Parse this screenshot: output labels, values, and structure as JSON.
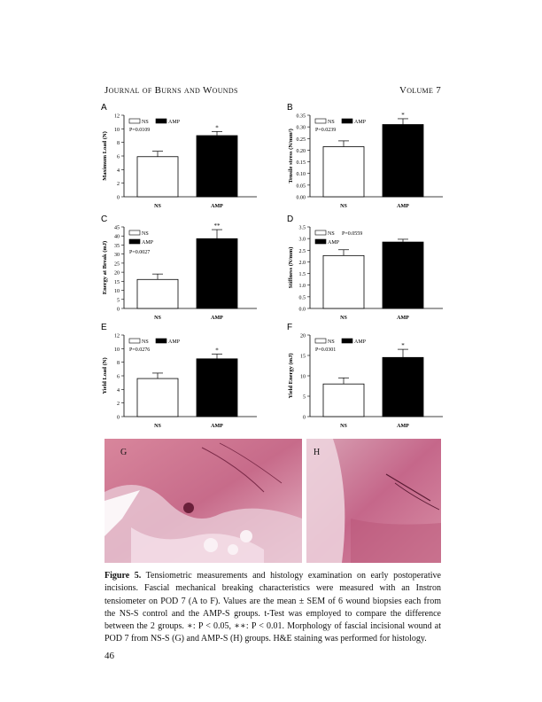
{
  "header": {
    "journal": "Journal of Burns and Wounds",
    "volume": "Volume 7"
  },
  "legend": {
    "ns": "NS",
    "amp": "AMP"
  },
  "panels": [
    {
      "letter": "A",
      "ylabel": "Maximum Load (N)",
      "pvalue": "P=0.0109",
      "chart_data": {
        "type": "bar",
        "categories": [
          "NS",
          "AMP"
        ],
        "values": [
          5.9,
          9.0
        ],
        "errors": [
          0.8,
          0.6
        ],
        "ylim": [
          0,
          12
        ],
        "ticks": [
          "0",
          "2",
          "4",
          "6",
          "8",
          "10",
          "12"
        ],
        "significance": "*",
        "legend_layout": "inline"
      }
    },
    {
      "letter": "B",
      "ylabel": "Tensile stress (N/mm²)",
      "pvalue": "P=0.0239",
      "chart_data": {
        "type": "bar",
        "categories": [
          "NS",
          "AMP"
        ],
        "values": [
          0.215,
          0.31
        ],
        "errors": [
          0.025,
          0.025
        ],
        "ylim": [
          0,
          0.35
        ],
        "ticks": [
          "0.00",
          "0.05",
          "0.10",
          "0.15",
          "0.20",
          "0.25",
          "0.30",
          "0.35"
        ],
        "significance": "*",
        "legend_layout": "inline"
      }
    },
    {
      "letter": "C",
      "ylabel": "Energy at Break (mJ)",
      "pvalue": "P=0.0027",
      "chart_data": {
        "type": "bar",
        "categories": [
          "NS",
          "AMP"
        ],
        "values": [
          16.0,
          38.5
        ],
        "errors": [
          3.0,
          5.0
        ],
        "ylim": [
          0,
          45
        ],
        "ticks": [
          "0",
          "5",
          "10",
          "15",
          "20",
          "25",
          "30",
          "35",
          "40",
          "45"
        ],
        "significance": "**",
        "legend_layout": "stacked"
      }
    },
    {
      "letter": "D",
      "ylabel": "Stiffness (N/mm)",
      "pvalue": "P=0.0559",
      "chart_data": {
        "type": "bar",
        "categories": [
          "NS",
          "AMP"
        ],
        "values": [
          2.27,
          2.85
        ],
        "errors": [
          0.25,
          0.12
        ],
        "ylim": [
          0,
          3.5
        ],
        "ticks": [
          "0.0",
          "0.5",
          "1.0",
          "1.5",
          "2.0",
          "2.5",
          "3.0",
          "3.5"
        ],
        "significance": "",
        "legend_layout": "stacked-p"
      }
    },
    {
      "letter": "E",
      "ylabel": "Yield Load (N)",
      "pvalue": "P=0.0276",
      "chart_data": {
        "type": "bar",
        "categories": [
          "NS",
          "AMP"
        ],
        "values": [
          5.6,
          8.5
        ],
        "errors": [
          0.8,
          0.7
        ],
        "ylim": [
          0,
          12
        ],
        "ticks": [
          "0",
          "2",
          "4",
          "6",
          "8",
          "10",
          "12"
        ],
        "significance": "*",
        "legend_layout": "inline"
      }
    },
    {
      "letter": "F",
      "ylabel": "Yield Energy (mJ)",
      "pvalue": "P=0.0301",
      "chart_data": {
        "type": "bar",
        "categories": [
          "NS",
          "AMP"
        ],
        "values": [
          8.0,
          14.5
        ],
        "errors": [
          1.5,
          2.0
        ],
        "ylim": [
          0,
          20
        ],
        "ticks": [
          "0",
          "5",
          "10",
          "15",
          "20"
        ],
        "significance": "*",
        "legend_layout": "inline"
      }
    }
  ],
  "histology": [
    {
      "label": "G"
    },
    {
      "label": "H"
    }
  ],
  "caption": {
    "title": "Figure 5.",
    "text": " Tensiometric measurements and histology examination on early postoperative incisions. Fascial mechanical breaking characteristics were measured with an Instron tensiometer on POD 7 (A to F). Values are the mean ± SEM of 6 wound biopsies each from the NS-S control and the AMP-S groups. t-Test was employed to compare the difference between the 2 groups. ∗: P < 0.05, ∗∗: P < 0.01. Morphology of fascial incisional wound at POD 7 from NS-S (G) and AMP-S (H) groups. H&E staining was performed for histology."
  },
  "page_number": "46"
}
